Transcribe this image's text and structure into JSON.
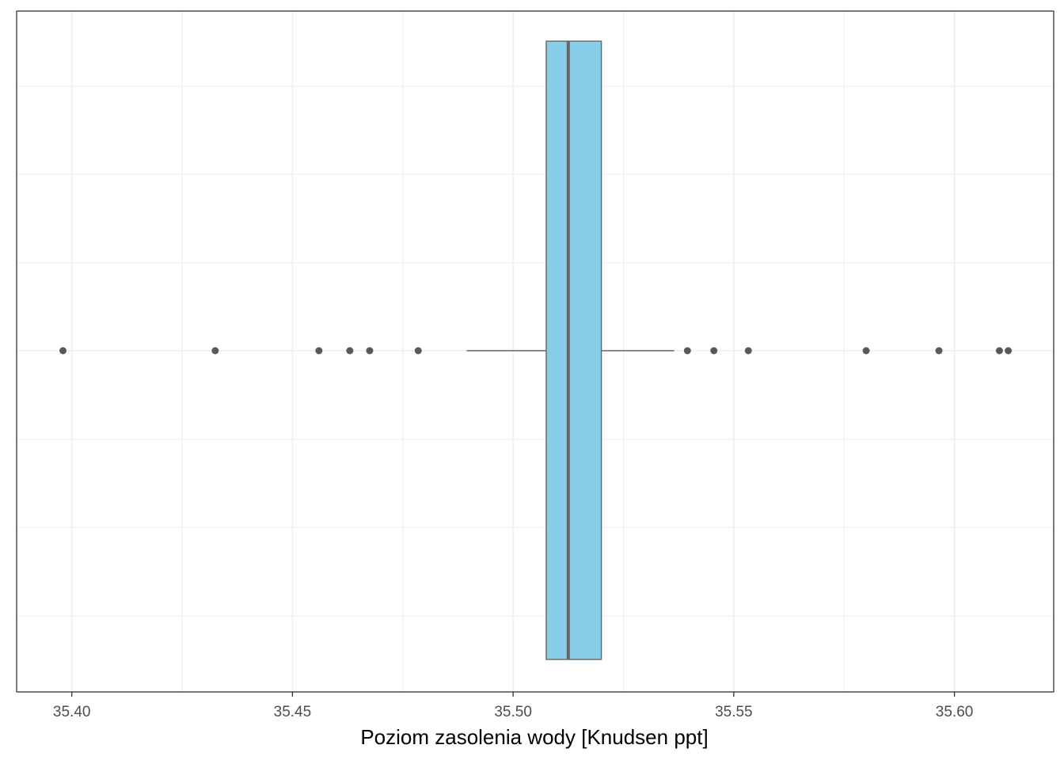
{
  "chart_data": {
    "type": "boxplot",
    "orientation": "horizontal",
    "title": "",
    "xlabel": "Poziom zasolenia wody [Knudsen ppt]",
    "ylabel": "",
    "xlim": [
      35.3875,
      35.6225
    ],
    "x_ticks": [
      35.4,
      35.45,
      35.5,
      35.55,
      35.6
    ],
    "x_tick_labels": [
      "35.40",
      "35.45",
      "35.50",
      "35.55",
      "35.60"
    ],
    "grid": true,
    "legend": "none",
    "colors": {
      "box_fill": "#87ceeb",
      "box_stroke": "#666666",
      "outlier": "#595959",
      "grid": "#ebebeb",
      "panel_border": "#333333"
    },
    "box": {
      "q1": 35.5075,
      "median": 35.5125,
      "q3": 35.52,
      "whisker_low": 35.4895,
      "whisker_high": 35.5365
    },
    "outliers": [
      35.398,
      35.4325,
      35.456,
      35.463,
      35.4675,
      35.4785,
      35.5395,
      35.5455,
      35.5533,
      35.58,
      35.5965,
      35.6102,
      35.6122
    ]
  }
}
